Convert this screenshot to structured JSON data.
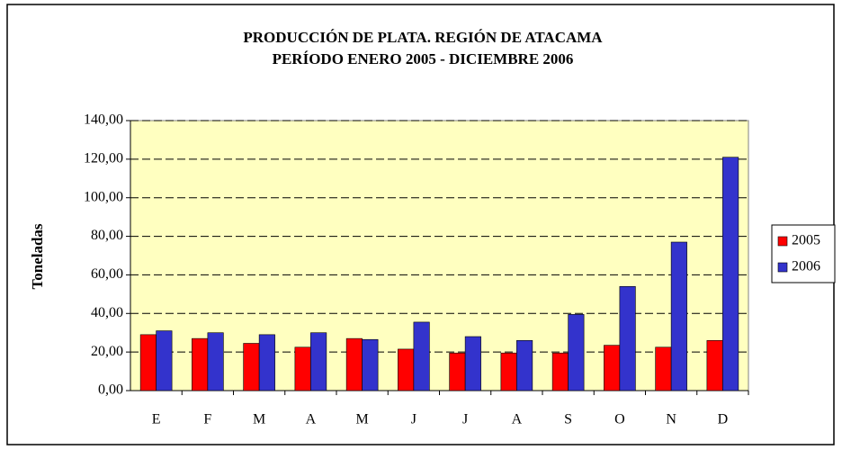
{
  "chart_data": {
    "type": "bar",
    "title": "PRODUCCIÓN DE PLATA.  REGIÓN DE ATACAMA",
    "subtitle": "PERÍODO ENERO 2005 - DICIEMBRE 2006",
    "y_label": "Toneladas",
    "categories": [
      "E",
      "F",
      "M",
      "A",
      "M",
      "J",
      "J",
      "A",
      "S",
      "O",
      "N",
      "D"
    ],
    "series": [
      {
        "name": "2005",
        "color": "#ff0000",
        "values": [
          29,
          27,
          24.5,
          22.5,
          27,
          21.5,
          19.5,
          19.5,
          19.5,
          23.5,
          22.5,
          26
        ]
      },
      {
        "name": "2006",
        "color": "#3333cc",
        "values": [
          31,
          30,
          29,
          30,
          26.5,
          35.5,
          28,
          26,
          39.5,
          54,
          77,
          121
        ]
      }
    ],
    "ylim": [
      0,
      140
    ],
    "yticks": [
      {
        "value": 0,
        "label": "0,00"
      },
      {
        "value": 20,
        "label": "20,00"
      },
      {
        "value": 40,
        "label": "40,00"
      },
      {
        "value": 60,
        "label": "60,00"
      },
      {
        "value": 80,
        "label": "80,00"
      },
      {
        "value": 100,
        "label": "100,00"
      },
      {
        "value": 120,
        "label": "120,00"
      },
      {
        "value": 140,
        "label": "140,00"
      }
    ],
    "grid": true,
    "legend": "right"
  }
}
